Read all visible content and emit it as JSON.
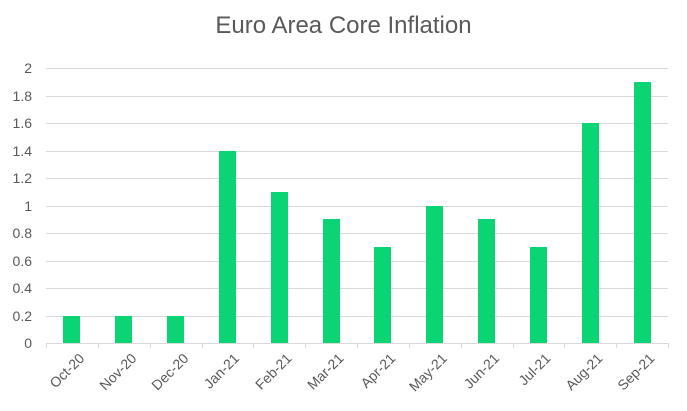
{
  "chart_data": {
    "type": "bar",
    "title": "Euro Area Core Inflation",
    "xlabel": "",
    "ylabel": "",
    "categories": [
      "Oct-20",
      "Nov-20",
      "Dec-20",
      "Jan-21",
      "Feb-21",
      "Mar-21",
      "Apr-21",
      "May-21",
      "Jun-21",
      "Jul-21",
      "Aug-21",
      "Sep-21"
    ],
    "values": [
      0.2,
      0.2,
      0.2,
      1.4,
      1.1,
      0.9,
      0.7,
      1.0,
      0.9,
      0.7,
      1.6,
      1.9
    ],
    "ylim": [
      0,
      2
    ],
    "yticks": [
      "0",
      "0.2",
      "0.4",
      "0.6",
      "0.8",
      "1",
      "1.2",
      "1.4",
      "1.6",
      "1.8",
      "2"
    ],
    "grid": true,
    "legend": null,
    "bar_color": "#0ad473"
  }
}
